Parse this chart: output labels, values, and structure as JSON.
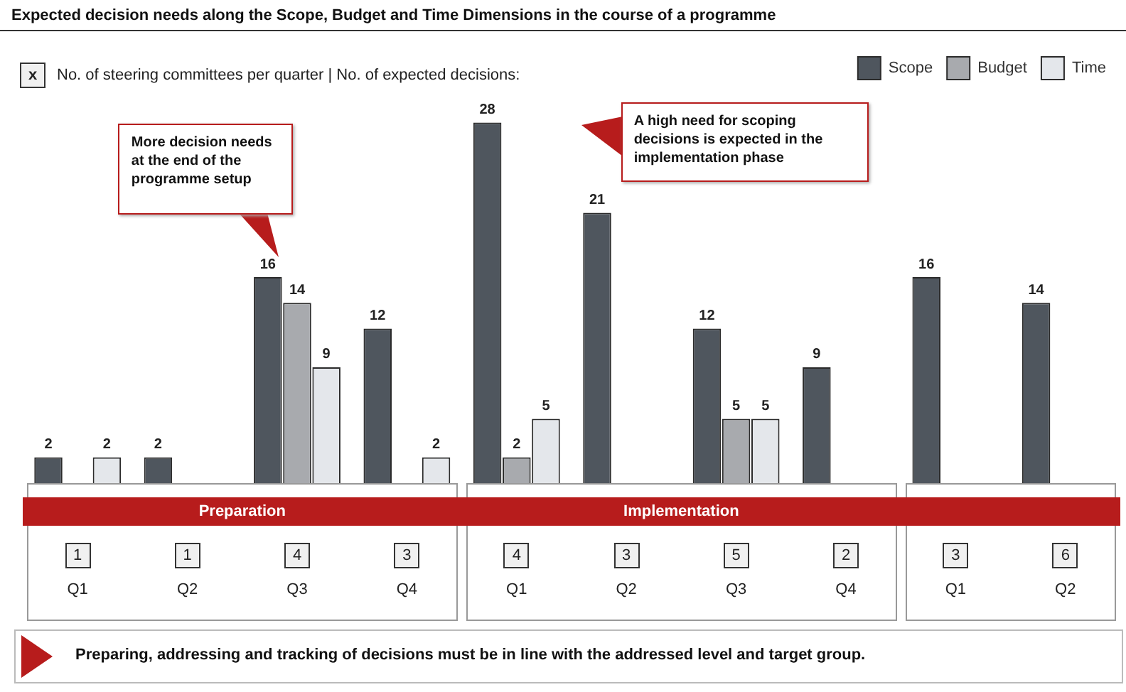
{
  "chart_data": {
    "type": "bar",
    "title": "Expected decision needs along the Scope, Budget and Time Dimensions in the course of a programme",
    "legend_title": "x No. of steering committees per quarter | No. of expected decisions:",
    "categories": [
      "1\nQ1",
      "1\nQ2",
      "4\nQ3",
      "3\nQ4",
      "4\nQ1",
      "3\nQ2",
      "5\nQ3",
      "2\nQ4",
      "3\nQ1",
      "6\nQ2"
    ],
    "series": [
      {
        "name": "Scope",
        "color": "#4f565e",
        "values": [
          2,
          2,
          16,
          12,
          28,
          21,
          12,
          9,
          16,
          14
        ]
      },
      {
        "name": "Budget",
        "color": "#a8aaae",
        "values": [
          null,
          null,
          14,
          null,
          2,
          null,
          5,
          null,
          null,
          null
        ]
      },
      {
        "name": "Time",
        "color": "#e4e7eb",
        "values": [
          2,
          null,
          9,
          2,
          5,
          null,
          5,
          null,
          null,
          null
        ]
      }
    ],
    "data_labels": true,
    "legend": "top right",
    "tick_labels": "x",
    "annotations": [
      "More decision needs at the end of the programme setup",
      "A high need for scoping decisions is expected in the implementation phase",
      "Preparation",
      "Implementation",
      "Preparing, addressing and tracking of decisions must be in line with the addressed level and target group."
    ]
  }
}
